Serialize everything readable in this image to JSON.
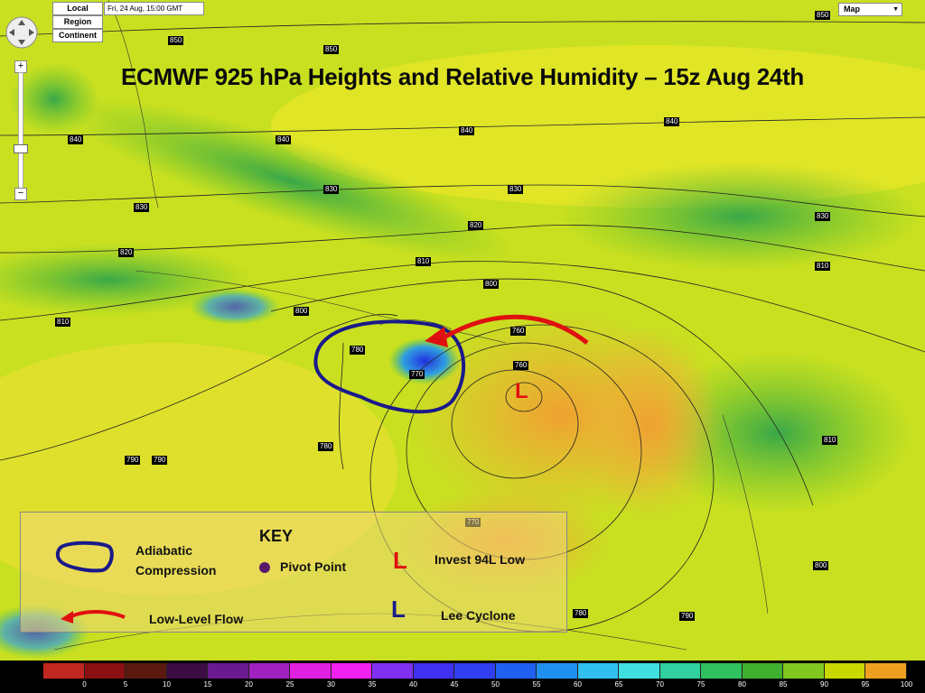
{
  "controls": {
    "local_label": "Local",
    "region_label": "Region",
    "continent_label": "Continent",
    "datetime": "Fri, 24 Aug, 15:00 GMT",
    "map_type": "Map"
  },
  "title": "ECMWF 925 hPa Heights and Relative Humidity – 15z Aug 24th",
  "height_labels": [
    "850",
    "850",
    "850",
    "840",
    "840",
    "840",
    "840",
    "830",
    "830",
    "830",
    "830",
    "820",
    "820",
    "810",
    "810",
    "810",
    "800",
    "800",
    "790",
    "780",
    "770",
    "760",
    "760",
    "780",
    "790",
    "810",
    "770",
    "800",
    "780",
    "790"
  ],
  "legend": {
    "heading": "KEY",
    "adiabatic": [
      "Adiabatic",
      "Compression"
    ],
    "pivot": "Pivot Point",
    "invest": "Invest 94L Low",
    "flow": "Low-Level Flow",
    "lee": "Lee Cyclone"
  },
  "annotations": {
    "low_marker": "L"
  },
  "colorbar": {
    "ticks": [
      "0",
      "5",
      "10",
      "15",
      "20",
      "25",
      "30",
      "35",
      "40",
      "45",
      "50",
      "55",
      "60",
      "65",
      "70",
      "75",
      "80",
      "85",
      "90",
      "95",
      "100"
    ],
    "colors": [
      "#c0271f",
      "#8a1012",
      "#5a1a10",
      "#3e0c45",
      "#6a1a8f",
      "#a020c0",
      "#e020e0",
      "#f020f0",
      "#8030f0",
      "#4030f0",
      "#3040f0",
      "#2060f0",
      "#2090f0",
      "#30c0f0",
      "#40e0e0",
      "#30d0a0",
      "#30c060",
      "#40b030",
      "#80c820",
      "#c8d800",
      "#f0a020"
    ]
  }
}
